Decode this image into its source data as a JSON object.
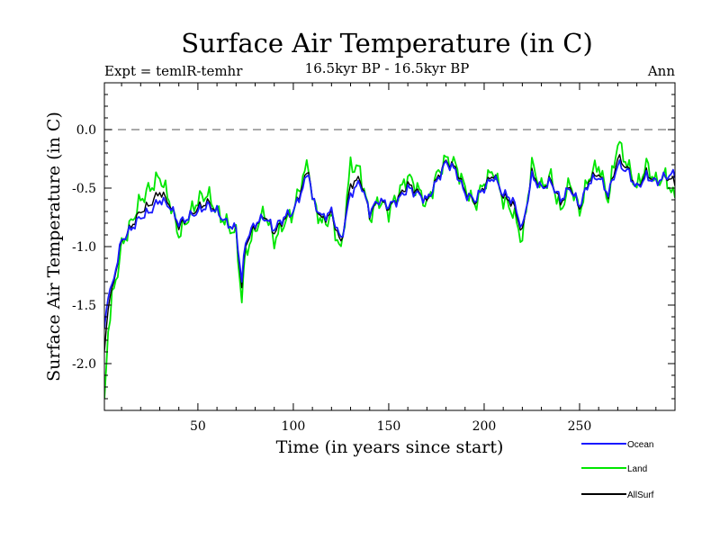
{
  "chart_data": {
    "type": "line",
    "title": "Surface Air Temperature (in C)",
    "subtitle": "16.5kyr BP - 16.5kyr BP",
    "left_label": "Expt = temlR-temhr",
    "right_label": "Ann",
    "xlabel": "Time (in years since start)",
    "ylabel": "Surface Air Temperature (in C)",
    "xlim": [
      1,
      300
    ],
    "ylim": [
      -2.4,
      0.4
    ],
    "x_ticks": [
      50,
      100,
      150,
      200,
      250
    ],
    "x_tick_labels": [
      "50",
      "100",
      "150",
      "200",
      "250"
    ],
    "y_ticks": [
      -2.0,
      -1.5,
      -1.0,
      -0.5,
      0.0
    ],
    "y_tick_labels": [
      "-2.0",
      "-1.5",
      "-1.0",
      "-0.5",
      "0.0"
    ],
    "reference_line": 0.0,
    "x_knots": [
      1,
      3,
      5,
      8,
      10,
      15,
      20,
      25,
      30,
      35,
      40,
      45,
      50,
      55,
      60,
      65,
      70,
      73,
      75,
      80,
      85,
      90,
      95,
      100,
      105,
      108,
      110,
      115,
      120,
      125,
      130,
      135,
      140,
      145,
      150,
      155,
      160,
      165,
      170,
      175,
      180,
      185,
      190,
      195,
      200,
      205,
      210,
      215,
      220,
      225,
      230,
      235,
      240,
      245,
      250,
      255,
      260,
      265,
      270,
      275,
      280,
      285,
      290,
      295,
      300
    ],
    "series": [
      {
        "name": "Ocean",
        "color": "#1a1aff",
        "values": [
          -1.7,
          -1.4,
          -1.35,
          -1.1,
          -0.95,
          -0.85,
          -0.75,
          -0.7,
          -0.6,
          -0.65,
          -0.8,
          -0.75,
          -0.7,
          -0.65,
          -0.7,
          -0.8,
          -0.85,
          -1.3,
          -0.95,
          -0.8,
          -0.75,
          -0.85,
          -0.75,
          -0.7,
          -0.5,
          -0.35,
          -0.6,
          -0.75,
          -0.7,
          -0.95,
          -0.55,
          -0.45,
          -0.7,
          -0.6,
          -0.65,
          -0.6,
          -0.5,
          -0.55,
          -0.6,
          -0.45,
          -0.28,
          -0.35,
          -0.55,
          -0.6,
          -0.5,
          -0.4,
          -0.55,
          -0.6,
          -0.85,
          -0.4,
          -0.5,
          -0.45,
          -0.6,
          -0.5,
          -0.65,
          -0.45,
          -0.4,
          -0.55,
          -0.3,
          -0.35,
          -0.5,
          -0.4,
          -0.45,
          -0.4,
          -0.38
        ]
      },
      {
        "name": "Land",
        "color": "#00e600",
        "values": [
          -2.35,
          -1.7,
          -1.45,
          -1.2,
          -1.0,
          -0.8,
          -0.6,
          -0.5,
          -0.4,
          -0.6,
          -0.9,
          -0.75,
          -0.6,
          -0.55,
          -0.7,
          -0.8,
          -0.9,
          -1.45,
          -1.05,
          -0.85,
          -0.7,
          -0.95,
          -0.8,
          -0.7,
          -0.4,
          -0.3,
          -0.6,
          -0.8,
          -0.75,
          -1.05,
          -0.3,
          -0.35,
          -0.75,
          -0.6,
          -0.7,
          -0.55,
          -0.4,
          -0.5,
          -0.65,
          -0.4,
          -0.25,
          -0.3,
          -0.5,
          -0.65,
          -0.45,
          -0.35,
          -0.6,
          -0.7,
          -0.95,
          -0.3,
          -0.5,
          -0.4,
          -0.7,
          -0.45,
          -0.7,
          -0.4,
          -0.3,
          -0.6,
          -0.1,
          -0.3,
          -0.5,
          -0.3,
          -0.45,
          -0.4,
          -0.6
        ]
      },
      {
        "name": "AllSurf",
        "color": "#000000",
        "values": [
          -1.9,
          -1.5,
          -1.38,
          -1.12,
          -0.96,
          -0.83,
          -0.7,
          -0.64,
          -0.53,
          -0.63,
          -0.83,
          -0.75,
          -0.67,
          -0.62,
          -0.7,
          -0.8,
          -0.86,
          -1.35,
          -0.98,
          -0.82,
          -0.73,
          -0.88,
          -0.77,
          -0.7,
          -0.47,
          -0.33,
          -0.6,
          -0.77,
          -0.72,
          -0.98,
          -0.47,
          -0.42,
          -0.72,
          -0.6,
          -0.67,
          -0.58,
          -0.47,
          -0.53,
          -0.62,
          -0.43,
          -0.27,
          -0.33,
          -0.53,
          -0.62,
          -0.48,
          -0.38,
          -0.57,
          -0.63,
          -0.88,
          -0.37,
          -0.5,
          -0.43,
          -0.63,
          -0.48,
          -0.67,
          -0.43,
          -0.37,
          -0.57,
          -0.24,
          -0.33,
          -0.5,
          -0.37,
          -0.45,
          -0.4,
          -0.45
        ]
      }
    ],
    "legend_position": "bottom-right"
  }
}
